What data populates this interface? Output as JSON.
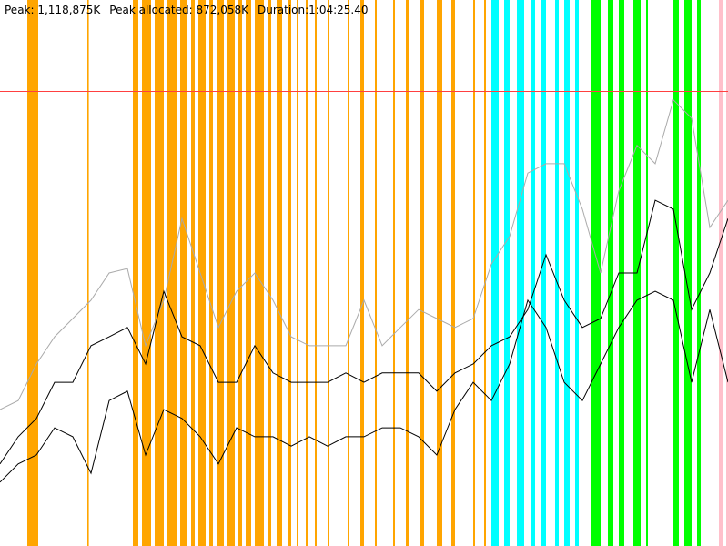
{
  "header": {
    "peak": "Peak: 1,118,875K",
    "peak_allocated": "Peak allocated: 872,058K",
    "duration": "Duration:1:04:25.40"
  },
  "chart_data": {
    "type": "line",
    "x": [
      0,
      1,
      2,
      3,
      4,
      5,
      6,
      7,
      8,
      9,
      10,
      11,
      12,
      13,
      14,
      15,
      16,
      17,
      18,
      19,
      20,
      21,
      22,
      23,
      24,
      25,
      26,
      27,
      28,
      29,
      30,
      31,
      32,
      33,
      34,
      35,
      36,
      37,
      38,
      39,
      40
    ],
    "xlim": [
      0,
      40
    ],
    "ylim": [
      0,
      1344000
    ],
    "peak_line": 1118875,
    "peak_line_color": "#ff4040",
    "series": [
      {
        "color": "#aaaaaa",
        "values": [
          336000,
          358000,
          448000,
          515000,
          560000,
          605000,
          672000,
          683000,
          493000,
          605000,
          806000,
          672000,
          538000,
          627000,
          672000,
          605000,
          515000,
          493000,
          493000,
          493000,
          605000,
          493000,
          538000,
          582000,
          560000,
          538000,
          560000,
          694000,
          762000,
          918000,
          941000,
          941000,
          829000,
          672000,
          874000,
          986000,
          941000,
          1098000,
          1053000,
          784000,
          851000
        ]
      },
      {
        "color": "#000000",
        "values": [
          202000,
          269000,
          314000,
          403000,
          403000,
          493000,
          515000,
          538000,
          448000,
          627000,
          515000,
          493000,
          403000,
          403000,
          493000,
          426000,
          403000,
          403000,
          403000,
          426000,
          403000,
          426000,
          426000,
          426000,
          381000,
          426000,
          448000,
          493000,
          515000,
          582000,
          717000,
          605000,
          538000,
          560000,
          672000,
          672000,
          851000,
          829000,
          582000,
          672000,
          806000
        ]
      },
      {
        "color": "#000000",
        "values": [
          157000,
          202000,
          224000,
          291000,
          269000,
          179000,
          358000,
          381000,
          224000,
          336000,
          314000,
          269000,
          202000,
          291000,
          269000,
          269000,
          246000,
          269000,
          246000,
          269000,
          269000,
          291000,
          291000,
          269000,
          224000,
          336000,
          403000,
          358000,
          448000,
          605000,
          538000,
          403000,
          358000,
          448000,
          538000,
          605000,
          627000,
          605000,
          403000,
          582000,
          403000
        ]
      }
    ],
    "events": [
      {
        "color": "#ffa500",
        "ranges": [
          [
            1.5,
            2.1
          ],
          [
            4.8,
            4.88
          ],
          [
            7.3,
            7.6
          ],
          [
            7.8,
            8.3
          ],
          [
            8.5,
            9.0
          ],
          [
            9.2,
            9.7
          ],
          [
            9.9,
            10.3
          ],
          [
            10.5,
            10.7
          ],
          [
            10.9,
            11.3
          ],
          [
            11.5,
            11.7
          ],
          [
            11.9,
            12.3
          ],
          [
            12.5,
            12.9
          ],
          [
            13.1,
            13.3
          ],
          [
            13.5,
            13.8
          ],
          [
            14.0,
            14.5
          ],
          [
            14.7,
            14.9
          ],
          [
            15.2,
            15.5
          ],
          [
            15.8,
            16.0
          ],
          [
            16.3,
            16.4
          ],
          [
            16.8,
            16.9
          ],
          [
            17.3,
            17.4
          ],
          [
            18.0,
            18.1
          ],
          [
            19.1,
            19.2
          ],
          [
            19.8,
            20.0
          ],
          [
            20.6,
            20.7
          ],
          [
            21.6,
            21.7
          ],
          [
            22.3,
            22.5
          ],
          [
            23.1,
            23.3
          ],
          [
            24.0,
            24.3
          ],
          [
            24.8,
            25.0
          ],
          [
            26.0,
            26.1
          ],
          [
            26.6,
            26.7
          ]
        ]
      },
      {
        "color": "#00ffff",
        "ranges": [
          [
            27.0,
            27.4
          ],
          [
            27.7,
            28.0
          ],
          [
            28.4,
            28.8
          ],
          [
            29.2,
            29.4
          ],
          [
            29.7,
            30.0
          ],
          [
            30.5,
            30.7
          ],
          [
            31.0,
            31.3
          ],
          [
            31.6,
            31.8
          ]
        ]
      },
      {
        "color": "#00ff00",
        "ranges": [
          [
            32.5,
            33.0
          ],
          [
            33.4,
            33.7
          ],
          [
            34.0,
            34.3
          ],
          [
            34.8,
            35.2
          ],
          [
            35.5,
            35.6
          ],
          [
            37.0,
            37.3
          ],
          [
            37.6,
            38.0
          ],
          [
            38.3,
            38.5
          ]
        ]
      },
      {
        "color": "#ffc0cb",
        "ranges": [
          [
            39.5,
            39.7
          ],
          [
            39.9,
            40
          ]
        ]
      }
    ]
  }
}
